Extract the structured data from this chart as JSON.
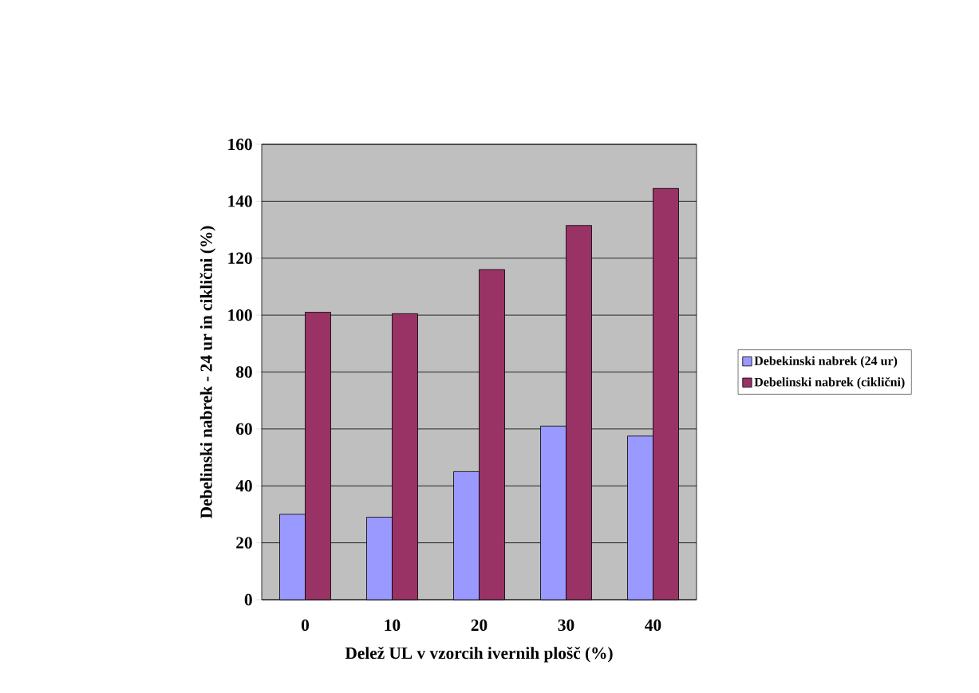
{
  "chart_data": {
    "type": "bar",
    "xlabel": "Delež UL v vzorcih ivernih plošč (%)",
    "ylabel": "Debelinski nabrek - 24 ur in ciklični (%)",
    "categories": [
      "0",
      "10",
      "20",
      "30",
      "40"
    ],
    "series": [
      {
        "name": "Debekinski nabrek (24 ur)",
        "color": "#9999ff",
        "values": [
          30,
          29,
          45,
          61,
          57.5
        ]
      },
      {
        "name": "Debelinski nabrek (ciklični)",
        "color": "#993366",
        "values": [
          101,
          100.5,
          116,
          131.5,
          144.5
        ]
      }
    ],
    "ylim": [
      0,
      160
    ],
    "yticks": [
      0,
      20,
      40,
      60,
      80,
      100,
      120,
      140,
      160
    ],
    "grid": "y",
    "legend": "right"
  }
}
